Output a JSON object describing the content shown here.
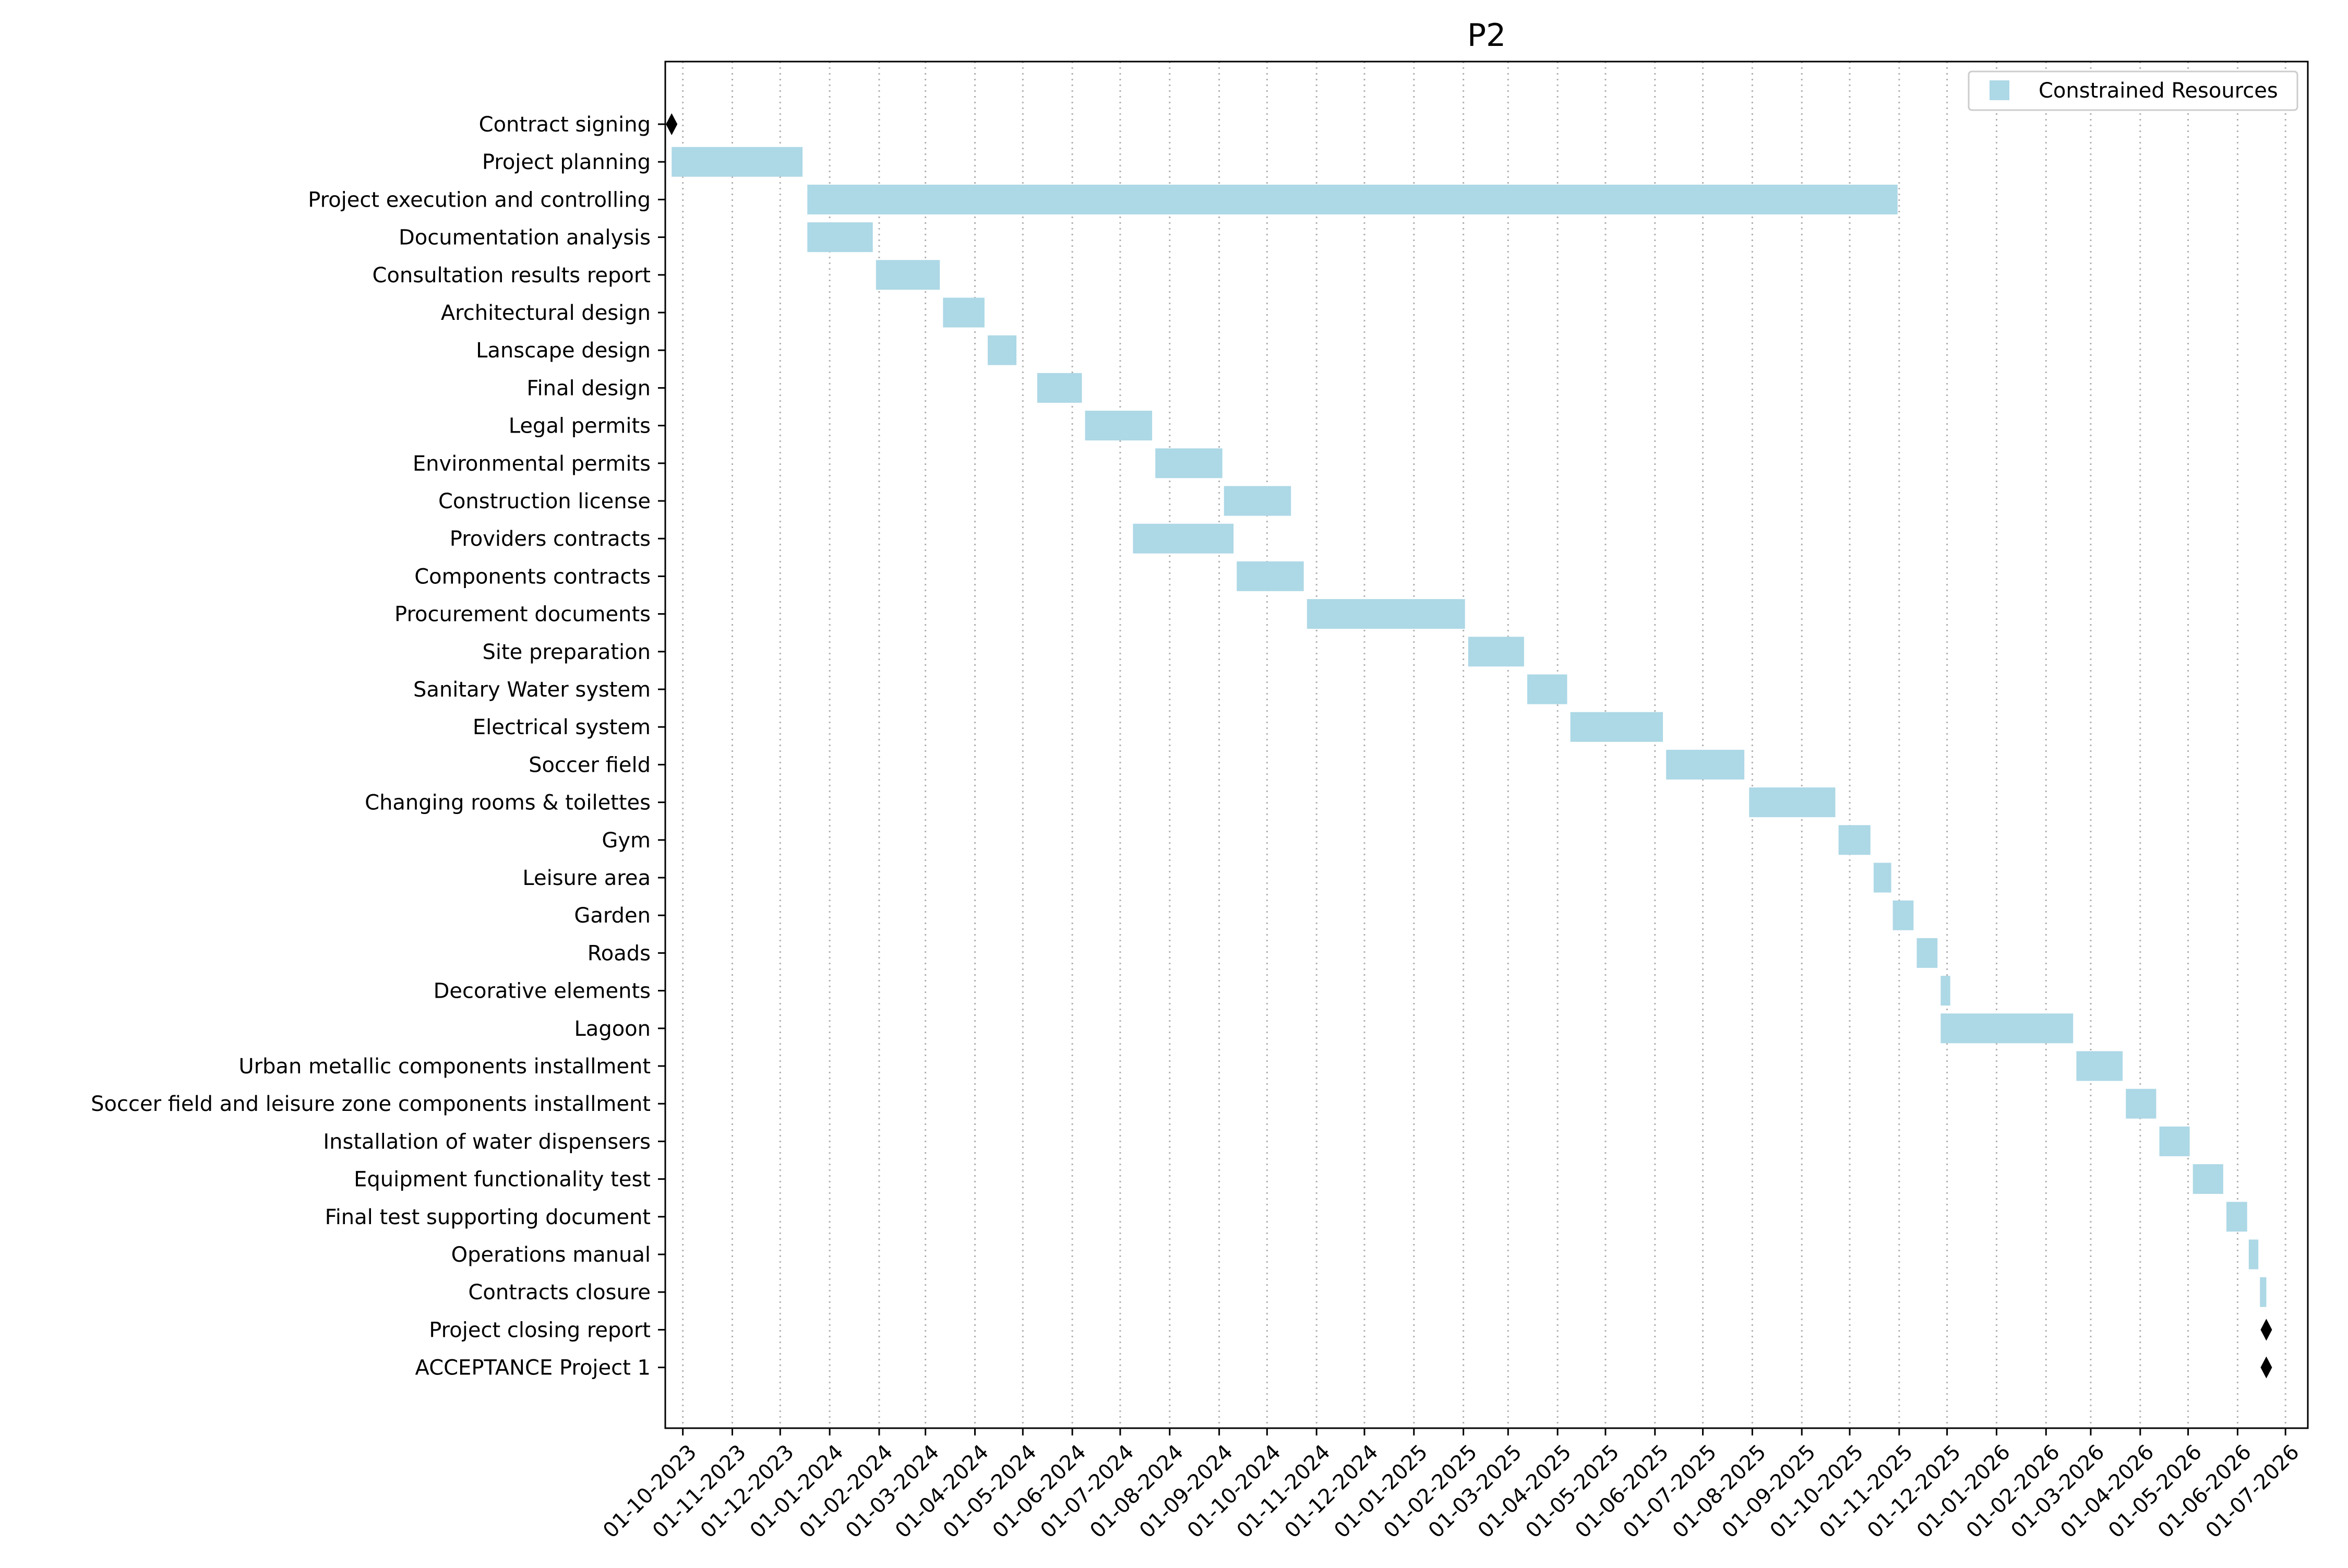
{
  "chart_data": {
    "type": "gantt",
    "title": "P2",
    "xlabel": "",
    "ylabel": "",
    "x_tick_labels": [
      "01-10-2023",
      "01-11-2023",
      "01-12-2023",
      "01-01-2024",
      "01-02-2024",
      "01-03-2024",
      "01-04-2024",
      "01-05-2024",
      "01-06-2024",
      "01-07-2024",
      "01-08-2024",
      "01-09-2024",
      "01-10-2024",
      "01-11-2024",
      "01-12-2024",
      "01-01-2025",
      "01-02-2025",
      "01-03-2025",
      "01-04-2025",
      "01-05-2025",
      "01-06-2025",
      "01-07-2025",
      "01-08-2025",
      "01-09-2025",
      "01-10-2025",
      "01-11-2025",
      "01-12-2025",
      "01-01-2026",
      "01-02-2026",
      "01-03-2026",
      "01-04-2026",
      "01-05-2026",
      "01-06-2026",
      "01-07-2026"
    ],
    "xlim": [
      "2023-09-20",
      "2026-07-15"
    ],
    "grid": "vertical dotted",
    "legend": {
      "placement": "top-right",
      "entries": [
        {
          "label": "Constrained Resources",
          "color": "#add8e6"
        }
      ]
    },
    "colors": {
      "bar": "#add8e6",
      "milestone": "#000000"
    },
    "tasks": [
      {
        "name": "Contract signing",
        "start": "2023-09-24",
        "end": "2023-09-24",
        "milestone": true
      },
      {
        "name": "Project planning",
        "start": "2023-09-24",
        "end": "2023-12-15"
      },
      {
        "name": "Project execution and controlling",
        "start": "2023-12-18",
        "end": "2025-10-31"
      },
      {
        "name": "Documentation analysis",
        "start": "2023-12-18",
        "end": "2024-01-28"
      },
      {
        "name": "Consultation results report",
        "start": "2024-01-30",
        "end": "2024-03-10"
      },
      {
        "name": "Architectural design",
        "start": "2024-03-12",
        "end": "2024-04-07"
      },
      {
        "name": "Lanscape design",
        "start": "2024-04-09",
        "end": "2024-04-27"
      },
      {
        "name": "Final design",
        "start": "2024-05-10",
        "end": "2024-06-07"
      },
      {
        "name": "Legal permits",
        "start": "2024-06-09",
        "end": "2024-07-21"
      },
      {
        "name": "Environmental permits",
        "start": "2024-07-23",
        "end": "2024-09-03"
      },
      {
        "name": "Construction license",
        "start": "2024-09-04",
        "end": "2024-10-16"
      },
      {
        "name": "Providers contracts",
        "start": "2024-07-09",
        "end": "2024-09-10"
      },
      {
        "name": "Components contracts",
        "start": "2024-09-12",
        "end": "2024-10-24"
      },
      {
        "name": "Procurement documents",
        "start": "2024-10-26",
        "end": "2025-02-02"
      },
      {
        "name": "Site preparation",
        "start": "2025-02-04",
        "end": "2025-03-11"
      },
      {
        "name": "Sanitary Water system",
        "start": "2025-03-13",
        "end": "2025-04-07"
      },
      {
        "name": "Electrical system",
        "start": "2025-04-09",
        "end": "2025-06-06"
      },
      {
        "name": "Soccer field",
        "start": "2025-06-08",
        "end": "2025-07-27"
      },
      {
        "name": "Changing rooms & toilettes",
        "start": "2025-07-30",
        "end": "2025-09-22"
      },
      {
        "name": "Gym",
        "start": "2025-09-24",
        "end": "2025-10-14"
      },
      {
        "name": "Leisure area",
        "start": "2025-10-16",
        "end": "2025-10-27"
      },
      {
        "name": "Garden",
        "start": "2025-10-28",
        "end": "2025-11-10"
      },
      {
        "name": "Roads",
        "start": "2025-11-12",
        "end": "2025-11-25"
      },
      {
        "name": "Decorative elements",
        "start": "2025-11-27",
        "end": "2025-12-03"
      },
      {
        "name": "Lagoon",
        "start": "2025-11-27",
        "end": "2026-02-18"
      },
      {
        "name": "Urban metallic components installment",
        "start": "2026-02-20",
        "end": "2026-03-21"
      },
      {
        "name": "Soccer field and leisure zone components installment",
        "start": "2026-03-23",
        "end": "2026-04-11"
      },
      {
        "name": "Installation of water dispensers",
        "start": "2026-04-13",
        "end": "2026-05-02"
      },
      {
        "name": "Equipment functionality test",
        "start": "2026-05-04",
        "end": "2026-05-23"
      },
      {
        "name": "Final test supporting document",
        "start": "2026-05-25",
        "end": "2026-06-07"
      },
      {
        "name": "Operations manual",
        "start": "2026-06-08",
        "end": "2026-06-14"
      },
      {
        "name": "Contracts closure",
        "start": "2026-06-15",
        "end": "2026-06-19"
      },
      {
        "name": "Project closing report",
        "start": "2026-06-19",
        "end": "2026-06-19",
        "milestone": true
      },
      {
        "name": "ACCEPTANCE Project 1",
        "start": "2026-06-19",
        "end": "2026-06-19",
        "milestone": true
      }
    ]
  }
}
